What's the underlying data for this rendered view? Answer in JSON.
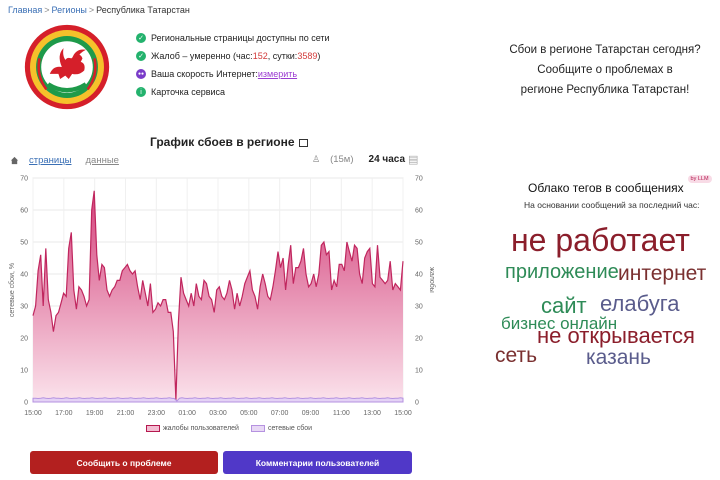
{
  "breadcrumb": {
    "home": "Главная",
    "regions": "Регионы",
    "current": "Республика Татарстан",
    "separator": ">"
  },
  "status": {
    "line1": "Региональные страницы доступны по сети",
    "line2_prefix": "Жалоб – умеренно (час: ",
    "hour_count": "152",
    "line2_mid": ", сутки: ",
    "day_count": "3589",
    "line2_suffix": ")",
    "speed_prefix": "Ваша скорость Интернет: ",
    "speed_link": "измерить",
    "service_card": "Карточка сервиса"
  },
  "promo": {
    "line1": "Сбои в регионе Татарстан сегодня?",
    "line2": "Сообщите о проблемах в",
    "line3": "регионе Республика Татарстан!"
  },
  "chart_header": {
    "title": "График сбоев в регионе",
    "tab_pages": "страницы",
    "tab_data": "данные",
    "range_15m": "(15м)",
    "range_24h": "24 часа"
  },
  "chart_data": {
    "type": "area",
    "x_ticks": [
      "15:00",
      "17:00",
      "19:00",
      "21:00",
      "23:00",
      "01:00",
      "03:00",
      "05:00",
      "07:00",
      "09:00",
      "11:00",
      "13:00",
      "15:00"
    ],
    "y_ticks": [
      0,
      10,
      20,
      30,
      40,
      50,
      60,
      70
    ],
    "ylim": [
      0,
      70
    ],
    "ylabel_left": "сетевые сбои, %",
    "ylabel_right": "жалобы",
    "grid": true,
    "series": [
      {
        "name": "жалобы пользователей",
        "color": "#c0265e",
        "values": [
          27,
          30,
          41,
          46,
          30,
          48,
          32,
          28,
          22,
          27,
          28,
          31,
          34,
          33,
          48,
          53,
          35,
          29,
          36,
          35,
          33,
          30,
          32,
          60,
          66,
          46,
          38,
          43,
          42,
          35,
          33,
          35,
          36,
          38,
          38,
          41,
          42,
          43,
          41,
          40,
          41,
          36,
          32,
          38,
          34,
          30,
          37,
          28,
          29,
          31,
          30,
          32,
          32,
          28,
          28,
          22,
          0.5,
          25,
          39,
          34,
          32,
          30,
          34,
          30,
          37,
          33,
          32,
          38,
          37,
          33,
          32,
          28,
          35,
          36,
          33,
          32,
          34,
          38,
          35,
          29,
          34,
          30,
          33,
          37,
          39,
          41,
          35,
          33,
          29,
          36,
          40,
          37,
          33,
          32,
          36,
          41,
          47,
          42,
          45,
          35,
          43,
          49,
          37,
          42,
          42,
          44,
          48,
          40,
          36,
          37,
          40,
          36,
          40,
          49,
          50,
          46,
          47,
          35,
          38,
          36,
          43,
          43,
          41,
          50,
          47,
          44,
          49,
          48,
          40,
          37,
          45,
          47,
          48,
          37,
          36,
          49,
          39,
          38,
          37,
          38,
          44,
          35,
          37,
          36,
          35,
          44
        ]
      },
      {
        "name": "сетевые сбои",
        "color": "#b592e0",
        "values": [
          1.2,
          1.2,
          1.1,
          1.2,
          1.3,
          1.2,
          1.1,
          1.2,
          1.3,
          1.2,
          1.2,
          1.1,
          1.2,
          1.3,
          1.2,
          1.1,
          1.2,
          1.2,
          1.3,
          1.2,
          1.1,
          1.2,
          1.2,
          1.3,
          1.2,
          1.1,
          1.2,
          1.2,
          1.3,
          1.2,
          1.1,
          1.2,
          1.2,
          1.3,
          1.2,
          1.1,
          1.2,
          1.2,
          1.3,
          1.2,
          1.1,
          1.2,
          1.2,
          1.3,
          1.2,
          1.1,
          1.2,
          1.2,
          1.3,
          1.2,
          1.1,
          1.2,
          1.2,
          1.3,
          1.2,
          1.1,
          0.3,
          1.2,
          1.3,
          1.2,
          1.1,
          1.2,
          1.2,
          1.3,
          1.2,
          1.1,
          1.2,
          1.2,
          1.3,
          1.2,
          1.1,
          1.2,
          1.2,
          1.3,
          1.2,
          1.1,
          1.2,
          1.2,
          1.3,
          1.2,
          1.1,
          1.2,
          1.2,
          1.3,
          1.2,
          1.1,
          1.2,
          1.2,
          1.3,
          1.2,
          1.1,
          1.2,
          1.2,
          1.3,
          1.2,
          1.1,
          1.2,
          1.2,
          1.3,
          1.2,
          1.1,
          1.2,
          1.2,
          1.3,
          1.2,
          1.1,
          1.2,
          1.2,
          1.3,
          1.2,
          1.1,
          1.2,
          1.2,
          1.3,
          1.2,
          1.1,
          1.2,
          1.2,
          1.3,
          1.2,
          1.1,
          1.2,
          1.2,
          1.3,
          1.2,
          1.1,
          1.2,
          1.2,
          1.3,
          1.2,
          1.1,
          1.2,
          1.2,
          1.3,
          1.2,
          1.1,
          1.2,
          1.2,
          1.3,
          1.2,
          1.1,
          1.2,
          1.2,
          1.3,
          1.2
        ]
      }
    ]
  },
  "buttons": {
    "report": "Сообщить о проблеме",
    "comments": "Комментарии пользователей"
  },
  "tag_cloud": {
    "title": "Облако тегов в сообщениях",
    "badge": "by LLM",
    "subtitle": "На основании сообщений за последний час:",
    "tags": [
      {
        "text": "не работает",
        "color": "#8b1e2b"
      },
      {
        "text": "приложение",
        "color": "#2e8b57"
      },
      {
        "text": "интернет",
        "color": "#7a3030"
      },
      {
        "text": "сайт",
        "color": "#2e8b57"
      },
      {
        "text": "елабуга",
        "color": "#5a5c8c"
      },
      {
        "text": "бизнес онлайн",
        "color": "#2e8b57"
      },
      {
        "text": "не открывается",
        "color": "#8b1e2b"
      },
      {
        "text": "сеть",
        "color": "#7a3030"
      },
      {
        "text": "казань",
        "color": "#5a5c8c"
      }
    ]
  },
  "colors": {
    "accent_red": "#b3201f",
    "accent_purple": "#5038c8",
    "complaints": "#c0265e",
    "outages": "#b592e0"
  }
}
